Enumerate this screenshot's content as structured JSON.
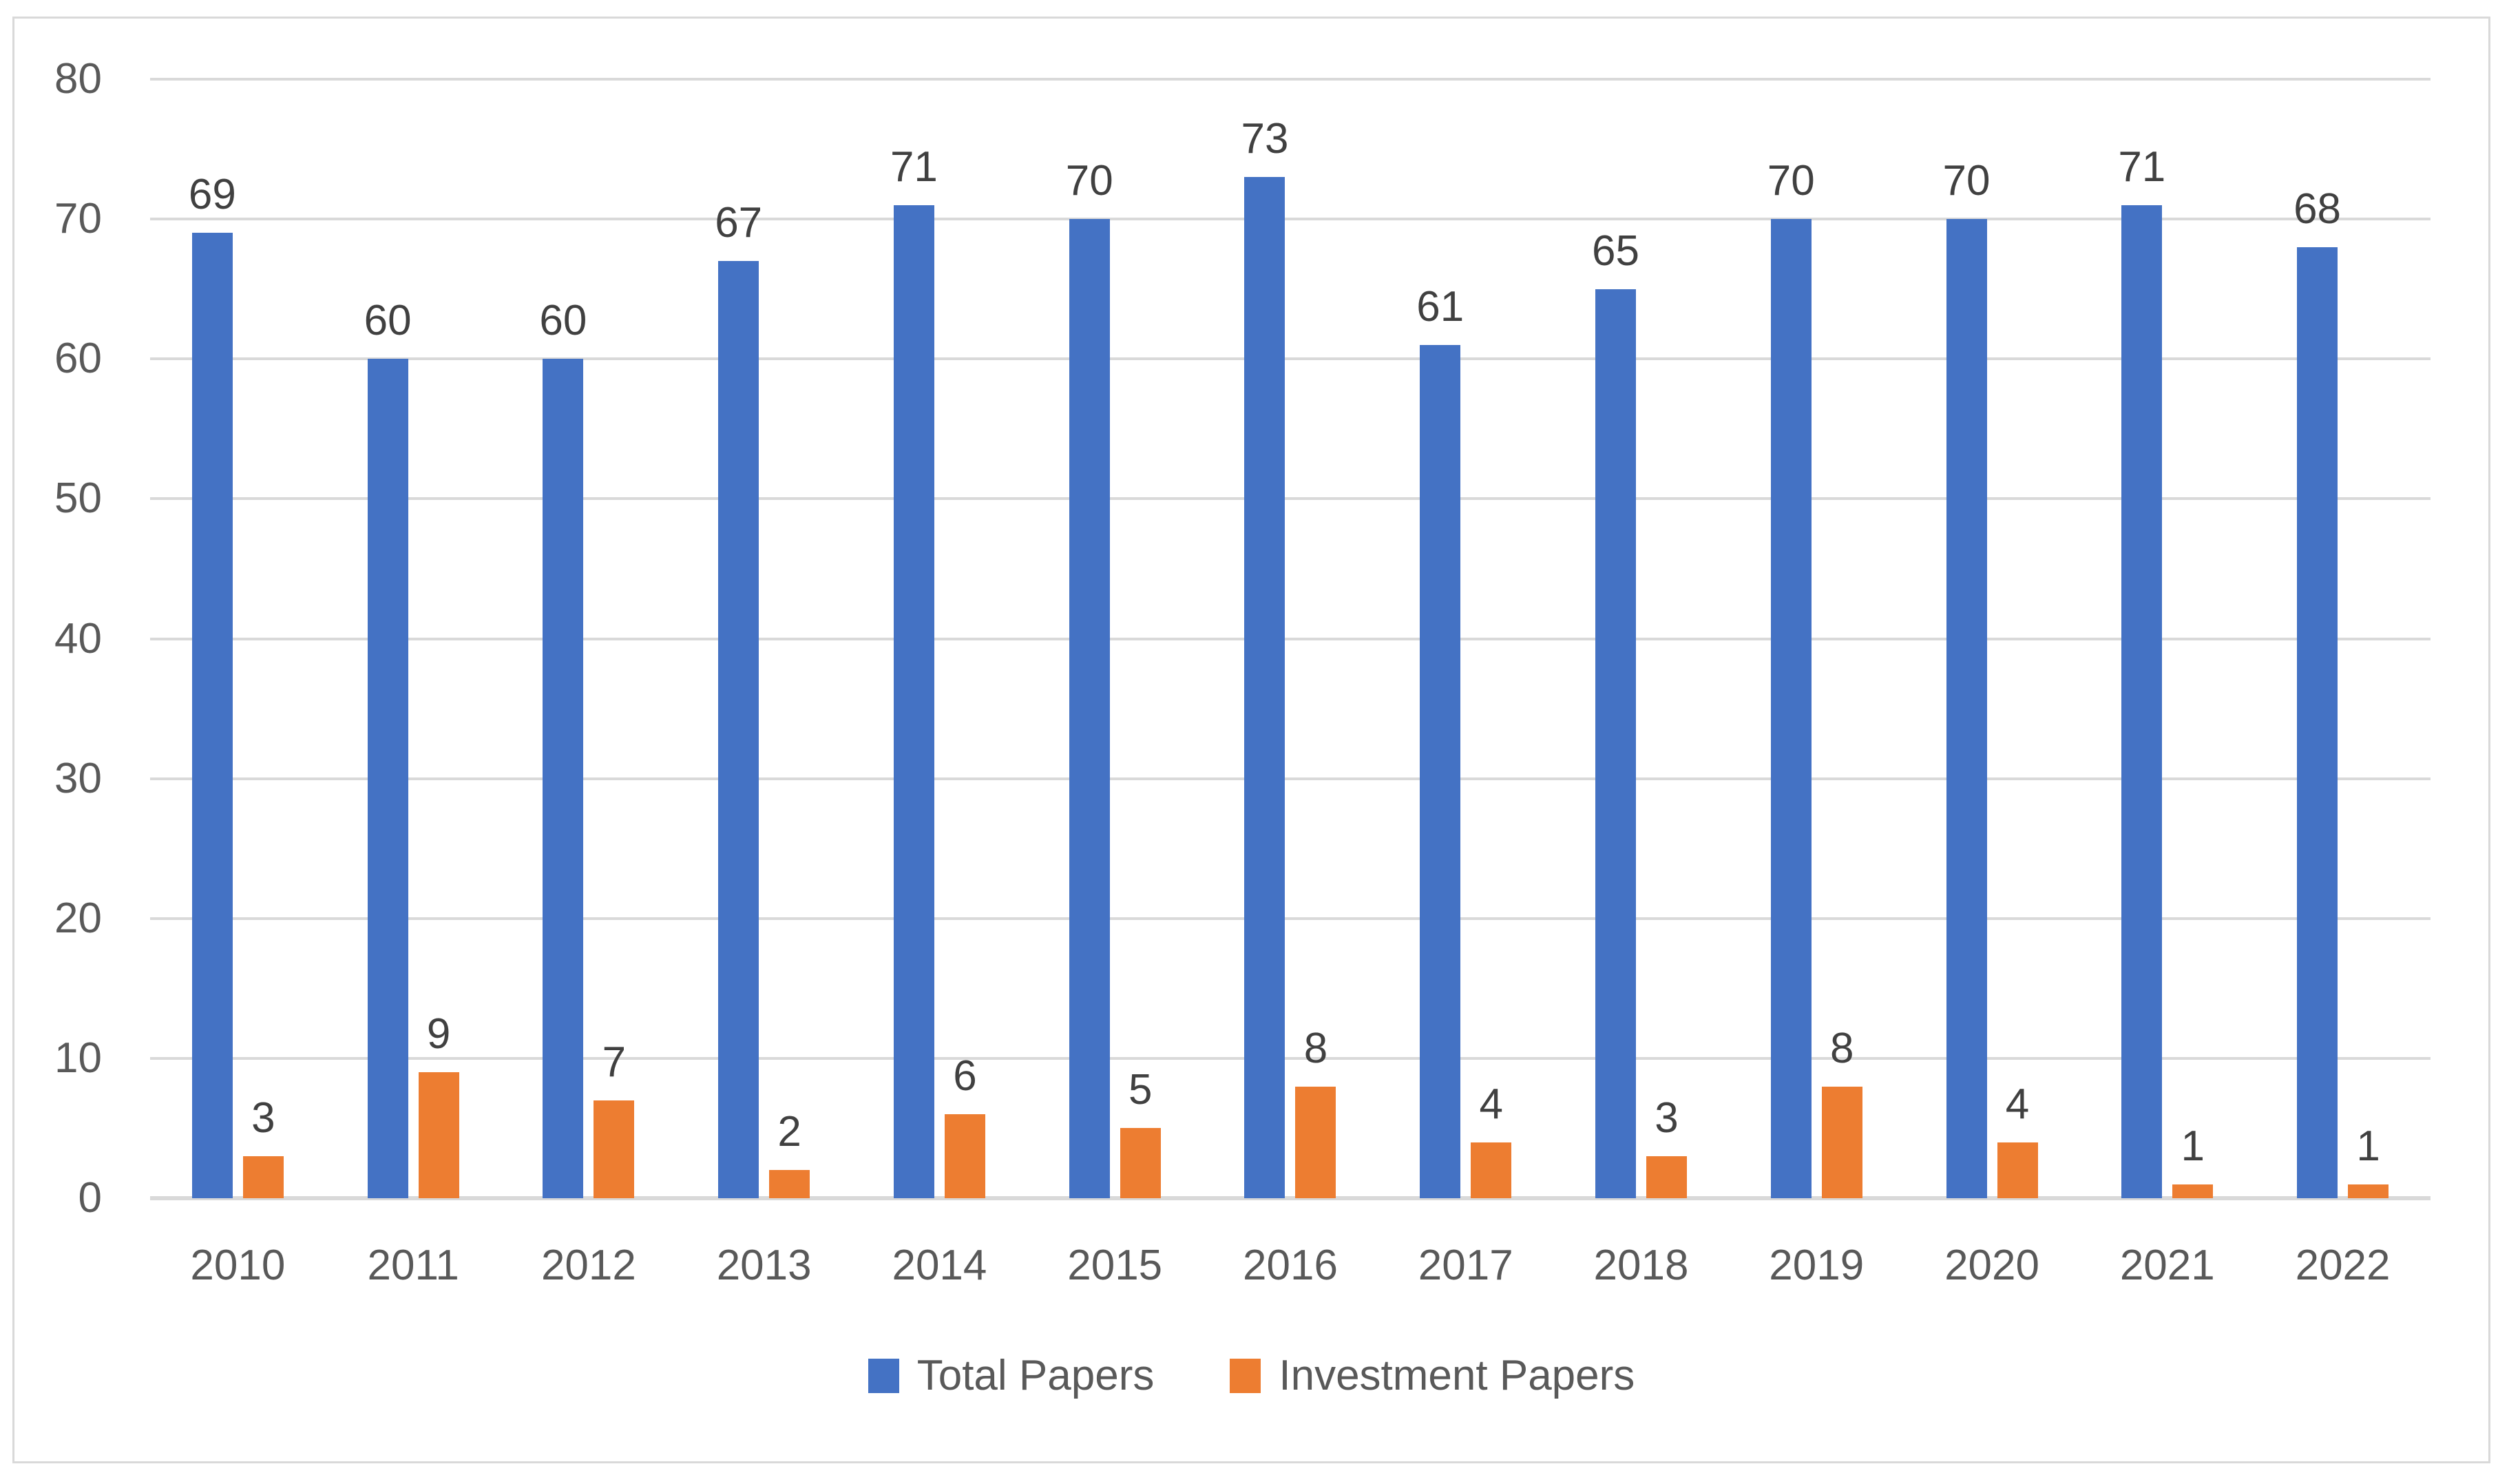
{
  "chart_data": {
    "type": "bar",
    "title": "",
    "categories": [
      "2010",
      "2011",
      "2012",
      "2013",
      "2014",
      "2015",
      "2016",
      "2017",
      "2018",
      "2019",
      "2020",
      "2021",
      "2022"
    ],
    "series": [
      {
        "name": "Total Papers",
        "color": "#4472C4",
        "values": [
          69,
          60,
          60,
          67,
          71,
          70,
          73,
          61,
          65,
          70,
          70,
          71,
          68
        ]
      },
      {
        "name": "Investment Papers",
        "color": "#ED7D31",
        "values": [
          3,
          9,
          7,
          2,
          6,
          5,
          8,
          4,
          3,
          8,
          4,
          1,
          1
        ]
      }
    ],
    "ylim": [
      0,
      80
    ],
    "yticks": [
      0,
      10,
      20,
      30,
      40,
      50,
      60,
      70,
      80
    ],
    "xlabel": "",
    "ylabel": "",
    "grid": "horizontal",
    "legend_position": "bottom",
    "data_labels": true
  },
  "legend": {
    "items": [
      {
        "label": "Total Papers",
        "color": "#4472C4"
      },
      {
        "label": "Investment Papers",
        "color": "#ED7D31"
      }
    ]
  },
  "colors": {
    "gridline": "#D9D9D9",
    "frame_border": "#D9D9D9",
    "axis_text": "#595959",
    "data_label_text": "#404040",
    "background": "#ffffff"
  }
}
